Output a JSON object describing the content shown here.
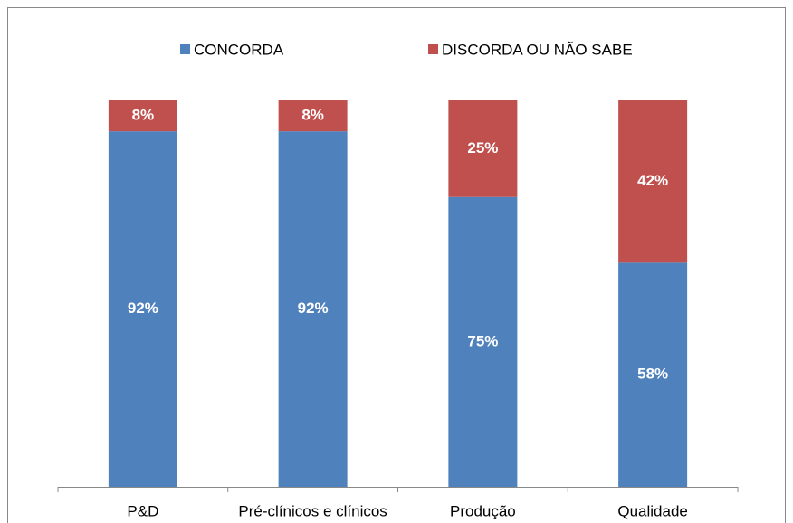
{
  "chart_data": {
    "type": "stacked_bar",
    "categories": [
      "P&D",
      "Pré-clínicos e clínicos",
      "Produção",
      "Qualidade"
    ],
    "series": [
      {
        "name": "CONCORDA",
        "color": "#4f81bd",
        "values": [
          92,
          92,
          75,
          58
        ],
        "value_labels": [
          "92%",
          "92%",
          "75%",
          "58%"
        ]
      },
      {
        "name": "DISCORDA OU NÃO SABE",
        "color": "#c0504d",
        "values": [
          8,
          8,
          25,
          42
        ],
        "value_labels": [
          "8%",
          "8%",
          "25%",
          "42%"
        ]
      }
    ],
    "ylim": [
      0,
      100
    ],
    "legend": "top"
  }
}
